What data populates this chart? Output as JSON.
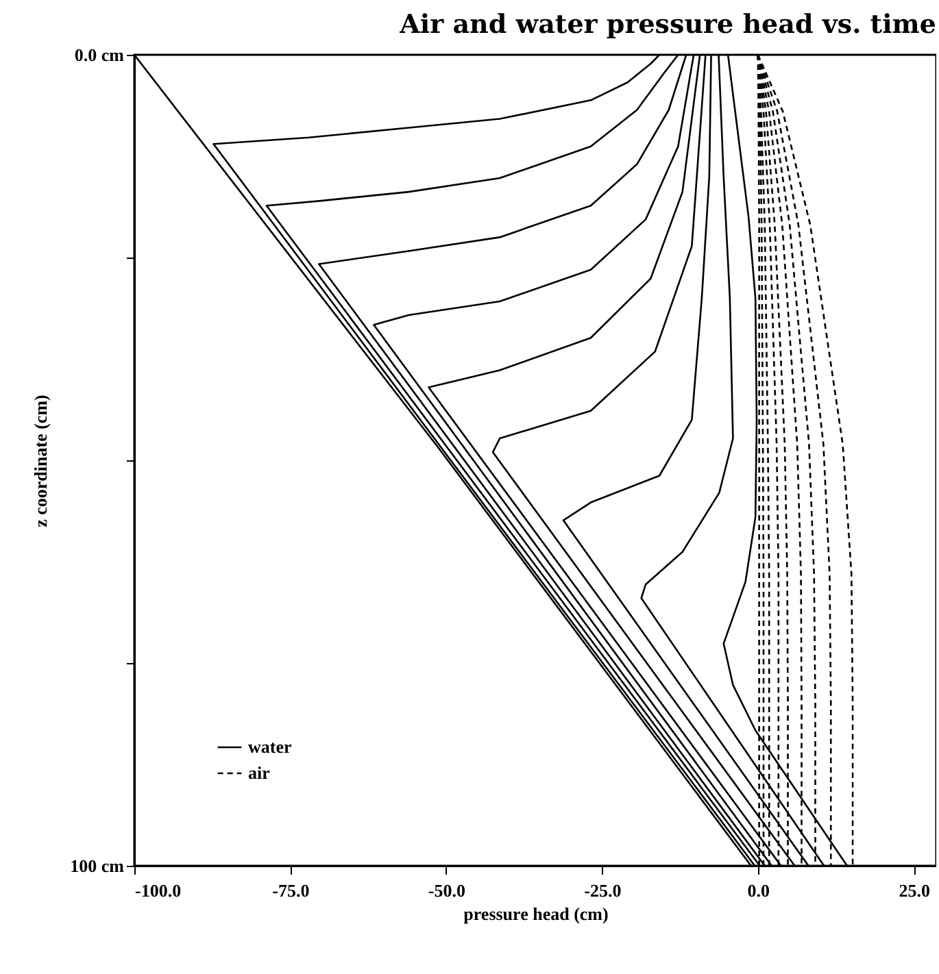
{
  "chart_data": {
    "type": "line",
    "title": "Air and water pressure head vs. time",
    "xlabel": "pressure head (cm)",
    "ylabel": "z coordinate (cm)",
    "xlim": [
      -100,
      28.6
    ],
    "ylim": [
      100,
      0
    ],
    "xticks": [
      {
        "value": -100,
        "label": "-100.0"
      },
      {
        "value": -75,
        "label": "-75.0"
      },
      {
        "value": -50,
        "label": "-50.0"
      },
      {
        "value": -25,
        "label": "-25.0"
      },
      {
        "value": 0,
        "label": "0.0"
      },
      {
        "value": 25,
        "label": "25.0"
      }
    ],
    "yticks": [
      {
        "value": 0,
        "label": "0.0 cm"
      },
      {
        "value": 25,
        "label": null
      },
      {
        "value": 50,
        "label": null
      },
      {
        "value": 75,
        "label": null
      },
      {
        "value": 100,
        "label": "100 cm"
      }
    ],
    "grid": false,
    "legend": "bottom left",
    "series": [
      {
        "name": "water",
        "color": "#000000",
        "line_style": "solid",
        "x": [
          -100,
          -51.3,
          -1.1
        ],
        "values": [
          0,
          48.4,
          100
        ]
      },
      {
        "color": "#000000",
        "line_style": "solid",
        "x": [
          -15.8,
          -17.2,
          -20.9,
          -26.8,
          -41.4,
          -56,
          -72,
          -87.3,
          -0.5
        ],
        "values": [
          0,
          1.1,
          3.4,
          5.6,
          7.9,
          9,
          10.2,
          11,
          100
        ]
      },
      {
        "color": "#000000",
        "line_style": "solid",
        "x": [
          -12.8,
          -15,
          -19.4,
          -26.8,
          -41.4,
          -56,
          -70,
          -78.8,
          0.3
        ],
        "values": [
          0,
          2.2,
          6.8,
          11.3,
          15.2,
          16.9,
          18,
          18.6,
          100
        ]
      },
      {
        "color": "#000000",
        "line_style": "solid",
        "x": [
          -11.5,
          -14.3,
          -19.4,
          -26.8,
          -41.4,
          -56,
          -70.4,
          1.1
        ],
        "values": [
          0,
          6.8,
          13.5,
          18.6,
          22.5,
          24.2,
          25.8,
          100
        ]
      },
      {
        "color": "#000000",
        "line_style": "solid",
        "x": [
          -10.3,
          -12.8,
          -18,
          -26.8,
          -41.4,
          -56,
          -61.6,
          2.2
        ],
        "values": [
          0,
          11.3,
          20.3,
          26.5,
          30.4,
          32.1,
          33.3,
          100
        ]
      },
      {
        "color": "#000000",
        "line_style": "solid",
        "x": [
          -9.3,
          -12.1,
          -17.2,
          -26.8,
          -41.4,
          -52.8,
          3.7
        ],
        "values": [
          0,
          16.9,
          27.6,
          34.9,
          38.9,
          41,
          100
        ]
      },
      {
        "color": "#000000",
        "line_style": "solid",
        "x": [
          -8.4,
          -10.6,
          -16.5,
          -26.8,
          -41.4,
          -42.5,
          5.9
        ],
        "values": [
          0,
          23.6,
          36.6,
          43.9,
          47.3,
          49,
          100
        ]
      },
      {
        "color": "#000000",
        "line_style": "solid",
        "x": [
          -7.5,
          -7.8,
          -9,
          -10.6,
          -15.8,
          -26.8,
          -31.2,
          8.1
        ],
        "values": [
          0,
          15,
          30,
          45,
          51.9,
          55.2,
          57.4,
          100
        ]
      },
      {
        "color": "#000000",
        "line_style": "solid",
        "x": [
          -6.3,
          -5.5,
          -4.5,
          -4,
          -6.2,
          -12.1,
          -18,
          -18.7,
          10.6
        ],
        "values": [
          0,
          15,
          30,
          47.3,
          54,
          61.3,
          65.3,
          67,
          100
        ]
      },
      {
        "color": "#000000",
        "line_style": "solid",
        "x": [
          -4.8,
          -1.5,
          -0.4,
          -0.2,
          -0.4,
          -2,
          -5.5,
          -4,
          -0.4,
          14.3
        ],
        "values": [
          0,
          20,
          30,
          45,
          57,
          65,
          72.6,
          77.7,
          83.3,
          100
        ]
      },
      {
        "name": "air",
        "color": "#000000",
        "line_style": "dashed",
        "x": [
          0,
          0.1,
          0.2,
          0.2,
          0.2,
          0.2,
          0.2
        ],
        "values": [
          0,
          7,
          21,
          48,
          64,
          80,
          100
        ]
      },
      {
        "color": "#000000",
        "line_style": "dashed",
        "x": [
          0,
          0.3,
          0.6,
          0.8,
          0.9,
          0.9,
          0.9
        ],
        "values": [
          0,
          7,
          21,
          48,
          64,
          80,
          100
        ]
      },
      {
        "color": "#000000",
        "line_style": "dashed",
        "x": [
          0,
          0.5,
          1.1,
          1.6,
          1.8,
          1.8,
          1.8
        ],
        "values": [
          0,
          7,
          21,
          48,
          64,
          80,
          100
        ]
      },
      {
        "color": "#000000",
        "line_style": "dashed",
        "x": [
          0,
          0.9,
          1.9,
          3,
          3.3,
          3.3,
          3.3
        ],
        "values": [
          0,
          7,
          21,
          48,
          64,
          80,
          100
        ]
      },
      {
        "color": "#000000",
        "line_style": "dashed",
        "x": [
          0,
          1.3,
          2.7,
          4.3,
          4.7,
          4.8,
          4.8
        ],
        "values": [
          0,
          7,
          21,
          48,
          64,
          80,
          100
        ]
      },
      {
        "color": "#000000",
        "line_style": "dashed",
        "x": [
          0,
          1.8,
          3.9,
          6.3,
          6.9,
          7,
          7
        ],
        "values": [
          0,
          7,
          21,
          48,
          64,
          80,
          100
        ]
      },
      {
        "color": "#000000",
        "line_style": "dashed",
        "x": [
          0,
          2.4,
          5.1,
          8.2,
          9,
          9.2,
          9.2
        ],
        "values": [
          0,
          7,
          21,
          48,
          64,
          80,
          100
        ]
      },
      {
        "color": "#000000",
        "line_style": "dashed",
        "x": [
          0,
          3.1,
          6.5,
          10.5,
          11.5,
          11.7,
          11.7
        ],
        "values": [
          0,
          7,
          21,
          48,
          64,
          80,
          100
        ]
      },
      {
        "color": "#000000",
        "line_style": "dashed",
        "x": [
          0,
          4,
          8.4,
          13.6,
          15,
          15.2,
          15.2
        ],
        "values": [
          0,
          7,
          21,
          48,
          64,
          80,
          100
        ]
      }
    ]
  }
}
